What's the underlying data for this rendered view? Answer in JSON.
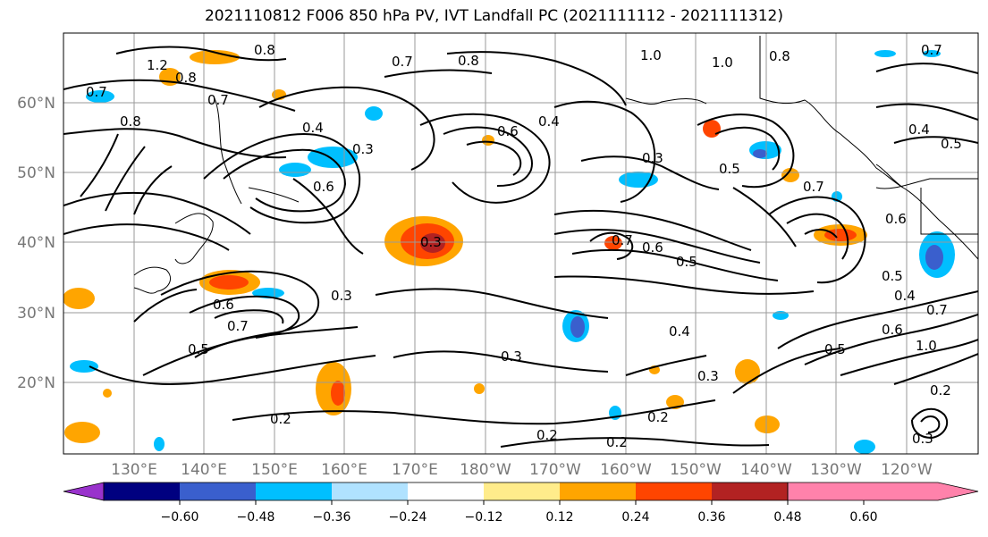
{
  "title": "2021110812 F006 850 hPa PV, IVT Landfall PC (2021111112 - 2021111312)",
  "map": {
    "lat_labels": [
      "60°N",
      "50°N",
      "40°N",
      "30°N",
      "20°N"
    ],
    "lon_labels": [
      "130°E",
      "140°E",
      "150°E",
      "160°E",
      "170°E",
      "180°W",
      "170°W",
      "160°W",
      "150°W",
      "140°W",
      "130°W",
      "120°W"
    ],
    "contour_labels": [
      "0.8",
      "1.2",
      "0.8",
      "0.7",
      "0.7",
      "0.8",
      "1.0",
      "1.0",
      "0.8",
      "0.7",
      "0.8",
      "0.7",
      "0.4",
      "0.3",
      "0.6",
      "0.4",
      "0.3",
      "0.5",
      "0.4",
      "0.5",
      "0.6",
      "0.7",
      "0.3",
      "0.6",
      "0.5",
      "0.7",
      "0.5",
      "0.6",
      "0.7",
      "0.3",
      "0.4",
      "0.3",
      "0.3",
      "0.2",
      "0.2",
      "0.2",
      "0.2",
      "0.5",
      "0.6",
      "1.0",
      "0.2",
      "0.3",
      "0.4",
      "0.5",
      "0.6",
      "0.7"
    ]
  },
  "colorbar": {
    "ticks": [
      "−0.60",
      "−0.48",
      "−0.36",
      "−0.24",
      "−0.12",
      "0.12",
      "0.24",
      "0.36",
      "0.48",
      "0.60"
    ],
    "colors": [
      "#9932cc",
      "#000080",
      "#3a5fcd",
      "#00bfff",
      "#b0e2ff",
      "#ffffff",
      "#ffec8b",
      "#ffa500",
      "#ff4500",
      "#b22222",
      "#ff82ab"
    ]
  }
}
